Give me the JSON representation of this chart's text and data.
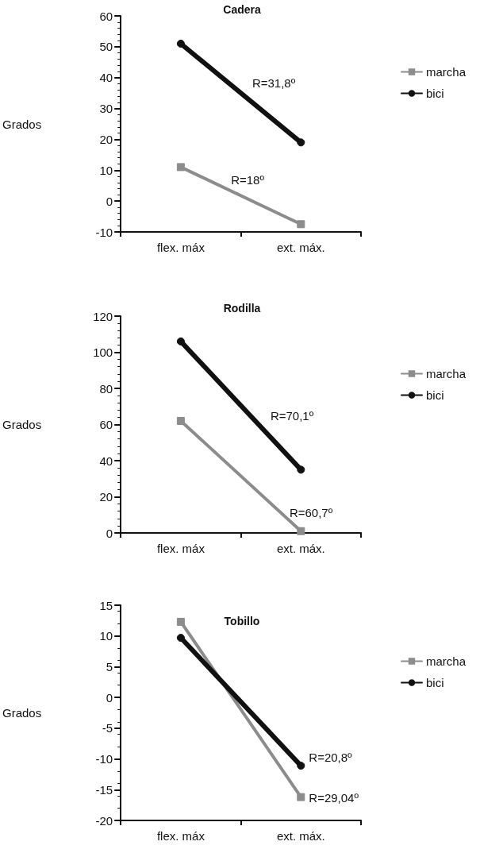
{
  "chart_data": [
    {
      "type": "line",
      "title": "Cadera",
      "ylabel": "Grados",
      "categories": [
        "flex. máx",
        "ext. máx."
      ],
      "ylim": [
        -10,
        60
      ],
      "yticks": [
        -10,
        0,
        10,
        20,
        30,
        40,
        50,
        60
      ],
      "grid": false,
      "legend": "right",
      "series": [
        {
          "name": "marcha",
          "color": "#8c8c8c",
          "marker": "square",
          "values": [
            11,
            -7.5
          ]
        },
        {
          "name": "bici",
          "color": "#111111",
          "marker": "circle",
          "values": [
            51,
            19
          ]
        }
      ],
      "annotations": [
        "R=31,8º",
        "R=18º"
      ]
    },
    {
      "type": "line",
      "title": "Rodilla",
      "ylabel": "Grados",
      "categories": [
        "flex. máx",
        "ext. máx."
      ],
      "ylim": [
        0,
        120
      ],
      "yticks": [
        0,
        20,
        40,
        60,
        80,
        100,
        120
      ],
      "grid": false,
      "legend": "right",
      "series": [
        {
          "name": "marcha",
          "color": "#8c8c8c",
          "marker": "square",
          "values": [
            62,
            1
          ]
        },
        {
          "name": "bici",
          "color": "#111111",
          "marker": "circle",
          "values": [
            106,
            35
          ]
        }
      ],
      "annotations": [
        "R=70,1º",
        "R=60,7º"
      ]
    },
    {
      "type": "line",
      "title": "Tobillo",
      "ylabel": "Grados",
      "categories": [
        "flex. máx",
        "ext. máx."
      ],
      "ylim": [
        -20,
        15
      ],
      "yticks": [
        -20,
        -15,
        -10,
        -5,
        0,
        5,
        10,
        15
      ],
      "grid": false,
      "legend": "right",
      "series": [
        {
          "name": "marcha",
          "color": "#8c8c8c",
          "marker": "square",
          "values": [
            12.3,
            -16.2
          ]
        },
        {
          "name": "bici",
          "color": "#111111",
          "marker": "circle",
          "values": [
            9.7,
            -11.1
          ]
        }
      ],
      "annotations": [
        {
          "text": "R=20,8º",
          "x": "ext. máx.",
          "y": -9.7
        },
        {
          "text": "R=29,04º",
          "x": "ext. máx.",
          "y": -16.3
        }
      ]
    }
  ]
}
